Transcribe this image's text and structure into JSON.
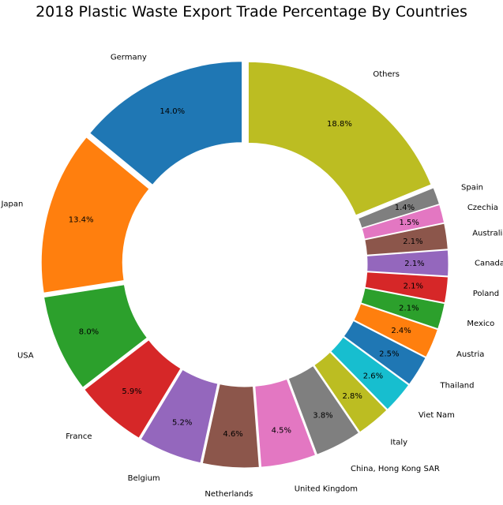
{
  "chart_data": {
    "type": "pie",
    "title": "2018 Plastic Waste Export Trade Percentage By Countries",
    "donut": true,
    "start_angle_deg": 90,
    "direction": "counterclockwise",
    "categories": [
      "Germany",
      "Japan",
      "USA",
      "France",
      "Belgium",
      "Netherlands",
      "United Kingdom",
      "China, Hong Kong SAR",
      "Italy",
      "Viet Nam",
      "Thailand",
      "Austria",
      "Mexico",
      "Poland",
      "Canada",
      "Australia",
      "Czechia",
      "Spain",
      "Others"
    ],
    "values": [
      14.0,
      13.4,
      8.0,
      5.9,
      5.2,
      4.6,
      4.5,
      3.8,
      2.8,
      2.6,
      2.5,
      2.4,
      2.1,
      2.1,
      2.1,
      2.1,
      1.5,
      1.4,
      18.8
    ],
    "value_labels": [
      "14.0%",
      "13.4%",
      "8.0%",
      "5.9%",
      "5.2%",
      "4.6%",
      "4.5%",
      "3.8%",
      "2.8%",
      "2.6%",
      "2.5%",
      "2.4%",
      "2.1%",
      "2.1%",
      "2.1%",
      "2.1%",
      "1.5%",
      "1.4%",
      "18.8%"
    ],
    "colors": [
      "#1f77b4",
      "#ff7f0e",
      "#2ca02c",
      "#d62728",
      "#9467bd",
      "#8c564b",
      "#e377c2",
      "#7f7f7f",
      "#bcbd22",
      "#17becf",
      "#1f77b4",
      "#ff7f0e",
      "#2ca02c",
      "#d62728",
      "#9467bd",
      "#8c564b",
      "#e377c2",
      "#7f7f7f",
      "#bcbd22"
    ]
  }
}
